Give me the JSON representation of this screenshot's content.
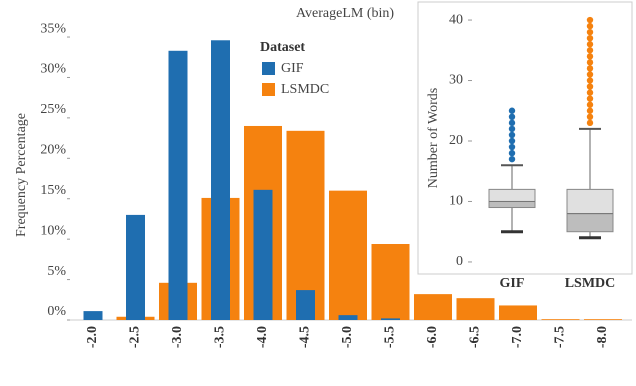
{
  "chart_data": [
    {
      "type": "bar",
      "title": "AverageLM (bin)",
      "y_label": "Frequency Percentage",
      "legend_title": "Dataset",
      "categories": [
        "-2.0",
        "-2.5",
        "-3.0",
        "-3.5",
        "-4.0",
        "-4.5",
        "-5.0",
        "-5.5",
        "-6.0",
        "-6.5",
        "-7.0",
        "-7.5",
        "-8.0"
      ],
      "series": [
        {
          "name": "LSMDC",
          "color": "#f5820f",
          "values": [
            0,
            0.4,
            4.6,
            15.1,
            24.0,
            23.4,
            16.0,
            9.4,
            3.2,
            2.7,
            1.8,
            0.1,
            0.1
          ]
        },
        {
          "name": "GIF",
          "color": "#1f6eb0",
          "values": [
            1.1,
            13.0,
            33.3,
            34.6,
            16.1,
            3.7,
            0.6,
            0.2,
            0,
            0,
            0,
            0,
            0
          ]
        }
      ],
      "ylim": [
        0,
        35.5
      ],
      "yticks": [
        {
          "value": 0,
          "label": "0%"
        },
        {
          "value": 5,
          "label": "5%"
        },
        {
          "value": 10,
          "label": "10%"
        },
        {
          "value": 15,
          "label": "15%"
        },
        {
          "value": 20,
          "label": "20%"
        },
        {
          "value": 25,
          "label": "25%"
        },
        {
          "value": 30,
          "label": "30%"
        },
        {
          "value": 35,
          "label": "35%"
        }
      ],
      "grid": false
    },
    {
      "type": "box",
      "y_label": "Number of Words",
      "categories": [
        "GIF",
        "LSMDC"
      ],
      "colors": [
        "#1f6eb0",
        "#f5820f"
      ],
      "boxes": [
        {
          "min": 5,
          "q1": 9,
          "median": 10,
          "q3": 12,
          "max": 16,
          "outliers": [
            17,
            18,
            19,
            20,
            21,
            22,
            23,
            24,
            25
          ]
        },
        {
          "min": 4,
          "q1": 5,
          "median": 8,
          "q3": 12,
          "max": 22,
          "outliers": [
            23,
            24,
            25,
            26,
            27,
            28,
            29,
            30,
            31,
            32,
            33,
            34,
            35,
            36,
            37,
            38,
            39,
            40
          ]
        }
      ],
      "ylim": [
        -1,
        41
      ],
      "yticks": [
        0,
        10,
        20,
        30,
        40
      ]
    }
  ]
}
